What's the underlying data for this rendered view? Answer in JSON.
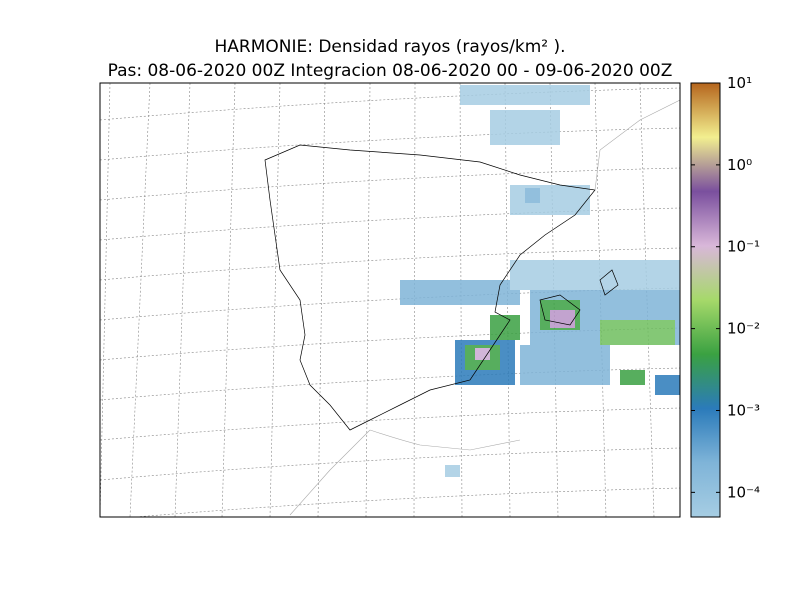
{
  "chart_data": {
    "type": "map",
    "title": "HARMONIE: Densidad rayos  (rayos/km² ).",
    "subtitle": "Pas: 08-06-2020 00Z Integracion 08-06-2020 00 - 09-06-2020 00Z",
    "colorbar": {
      "log": true,
      "ylim": [
        5e-05,
        10
      ],
      "colors": [
        "#a6cde3",
        "#7fb4d8",
        "#2b7bba",
        "#3aa142",
        "#a6d96a",
        "#d9b7d9",
        "#7a4f9e",
        "#f2ef8f",
        "#b5651d"
      ],
      "yticks": [
        {
          "value": 10,
          "label": "10¹"
        },
        {
          "value": 1,
          "label": "10⁰"
        },
        {
          "value": 0.1,
          "label": "10⁻¹"
        },
        {
          "value": 0.01,
          "label": "10⁻²"
        },
        {
          "value": 0.001,
          "label": "10⁻³"
        },
        {
          "value": 0.0001,
          "label": "10⁻⁴"
        }
      ]
    }
  }
}
